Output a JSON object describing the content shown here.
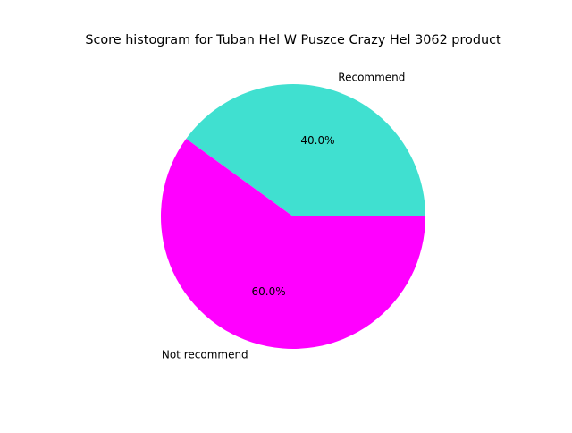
{
  "chart_data": {
    "type": "pie",
    "title": "Score histogram for Tuban Hel W Puszce Crazy Hel 3062 product",
    "slices": [
      {
        "label": "Recommend",
        "value": 40.0,
        "pct_label": "40.0%",
        "color": "#40e0d0"
      },
      {
        "label": "Not recommend",
        "value": 60.0,
        "pct_label": "60.0%",
        "color": "#ff00ff"
      }
    ],
    "start_angle_deg": 0,
    "direction": "counterclockwise",
    "legend": "none"
  }
}
